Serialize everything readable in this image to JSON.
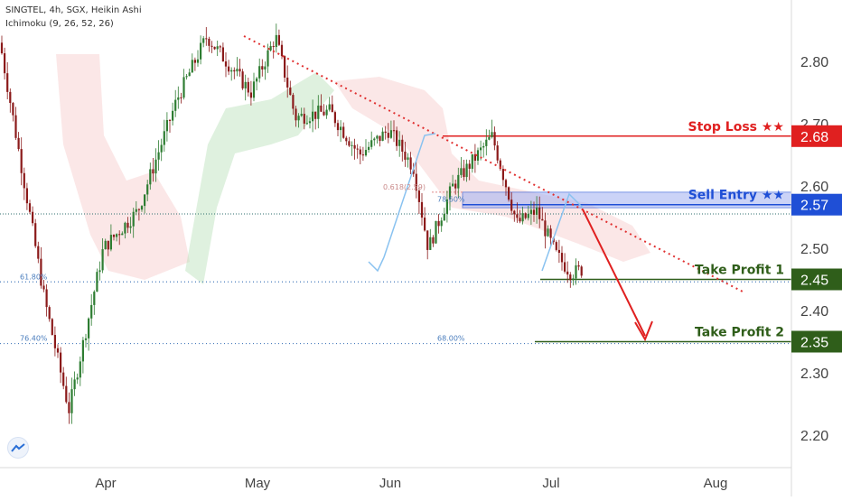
{
  "header": {
    "symbol_line": "SINGTEL, 4h, SGX, Heikin Ashi",
    "indicator_line": "Ichimoku (9, 26, 52, 26)"
  },
  "colors": {
    "up": "#2e7d32",
    "down": "#8b1a1a",
    "stop_loss": "#e02020",
    "sell_entry": "#1f4fd6",
    "take_profit": "#2f5e1a",
    "trendline": "#e03030",
    "fib": "#4a7dbd"
  },
  "chart_data": {
    "type": "candlestick",
    "x_ticks": [
      "Apr",
      "May",
      "Jun",
      "Jul",
      "Aug"
    ],
    "y_ticks": [
      2.8,
      2.7,
      2.6,
      2.5,
      2.4,
      2.3,
      2.2
    ],
    "y_tick_labels": [
      "2.80",
      "2.70",
      "2.60",
      "2.50",
      "2.40",
      "2.30",
      "2.20"
    ],
    "ylim": [
      2.15,
      2.9
    ],
    "approx_close_path": [
      {
        "x": "2020-03-09",
        "y": 2.83
      },
      {
        "x": "2020-03-18",
        "y": 2.42
      },
      {
        "x": "2020-03-23",
        "y": 2.24
      },
      {
        "x": "2020-03-30",
        "y": 2.5
      },
      {
        "x": "2020-04-06",
        "y": 2.56
      },
      {
        "x": "2020-04-14",
        "y": 2.74
      },
      {
        "x": "2020-04-20",
        "y": 2.84
      },
      {
        "x": "2020-04-29",
        "y": 2.75
      },
      {
        "x": "2020-05-04",
        "y": 2.84
      },
      {
        "x": "2020-05-08",
        "y": 2.71
      },
      {
        "x": "2020-05-15",
        "y": 2.72
      },
      {
        "x": "2020-05-21",
        "y": 2.65
      },
      {
        "x": "2020-05-27",
        "y": 2.69
      },
      {
        "x": "2020-06-01",
        "y": 2.63
      },
      {
        "x": "2020-06-04",
        "y": 2.5
      },
      {
        "x": "2020-06-09",
        "y": 2.6
      },
      {
        "x": "2020-06-17",
        "y": 2.68
      },
      {
        "x": "2020-06-22",
        "y": 2.54
      },
      {
        "x": "2020-06-26",
        "y": 2.56
      },
      {
        "x": "2020-06-30",
        "y": 2.49
      },
      {
        "x": "2020-07-03",
        "y": 2.46
      },
      {
        "x": "2020-07-07",
        "y": 2.47
      },
      {
        "x": "2020-07-10",
        "y": 2.53
      },
      {
        "x": "2020-07-13",
        "y": 2.56
      }
    ],
    "levels": [
      {
        "label": "Stop Loss ★★",
        "value": "2.68",
        "y": 2.68
      },
      {
        "label": "Sell Entry ★★",
        "value": "2.57",
        "y": 2.57
      },
      {
        "label": "Take Profit 1",
        "value": "2.45",
        "y": 2.45
      },
      {
        "label": "Take Profit 2",
        "value": "2.35",
        "y": 2.35
      }
    ],
    "fib_labels": [
      {
        "text": "0.618(2.59)",
        "y": 2.59
      },
      {
        "text": "78.60%",
        "y": 2.57
      },
      {
        "text": "61.80%",
        "y": 2.446
      },
      {
        "text": "76.40%",
        "y": 2.347
      },
      {
        "text": "68.00%",
        "y": 2.347
      }
    ],
    "grid": false
  }
}
